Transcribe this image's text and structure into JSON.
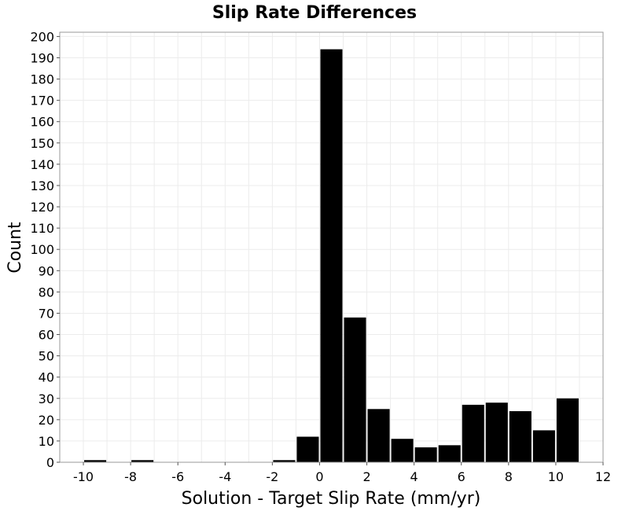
{
  "chart_data": {
    "type": "bar",
    "title": "Slip Rate Differences",
    "xlabel": "Solution - Target Slip Rate (mm/yr)",
    "ylabel": "Count",
    "bin_width": 1,
    "bins": [
      {
        "start": -10,
        "end": -9,
        "value": 1
      },
      {
        "start": -9,
        "end": -8,
        "value": 0
      },
      {
        "start": -8,
        "end": -7,
        "value": 1
      },
      {
        "start": -7,
        "end": -6,
        "value": 0
      },
      {
        "start": -6,
        "end": -5,
        "value": 0
      },
      {
        "start": -5,
        "end": -4,
        "value": 0
      },
      {
        "start": -4,
        "end": -3,
        "value": 0
      },
      {
        "start": -3,
        "end": -2,
        "value": 0
      },
      {
        "start": -2,
        "end": -1,
        "value": 1
      },
      {
        "start": -1,
        "end": 0,
        "value": 12
      },
      {
        "start": 0,
        "end": 1,
        "value": 194
      },
      {
        "start": 1,
        "end": 2,
        "value": 68
      },
      {
        "start": 2,
        "end": 3,
        "value": 25
      },
      {
        "start": 3,
        "end": 4,
        "value": 11
      },
      {
        "start": 4,
        "end": 5,
        "value": 7
      },
      {
        "start": 5,
        "end": 6,
        "value": 8
      },
      {
        "start": 6,
        "end": 7,
        "value": 27
      },
      {
        "start": 7,
        "end": 8,
        "value": 28
      },
      {
        "start": 8,
        "end": 9,
        "value": 24
      },
      {
        "start": 9,
        "end": 10,
        "value": 15
      },
      {
        "start": 10,
        "end": 11,
        "value": 30
      }
    ],
    "xlim": [
      -11,
      12
    ],
    "ylim": [
      0,
      202
    ],
    "x_ticks": [
      -10,
      -8,
      -6,
      -4,
      -2,
      0,
      2,
      4,
      6,
      8,
      10,
      12
    ],
    "y_ticks": [
      0,
      10,
      20,
      30,
      40,
      50,
      60,
      70,
      80,
      90,
      100,
      110,
      120,
      130,
      140,
      150,
      160,
      170,
      180,
      190,
      200
    ],
    "grid": true,
    "legend": "none",
    "bar_color": "#000000"
  }
}
